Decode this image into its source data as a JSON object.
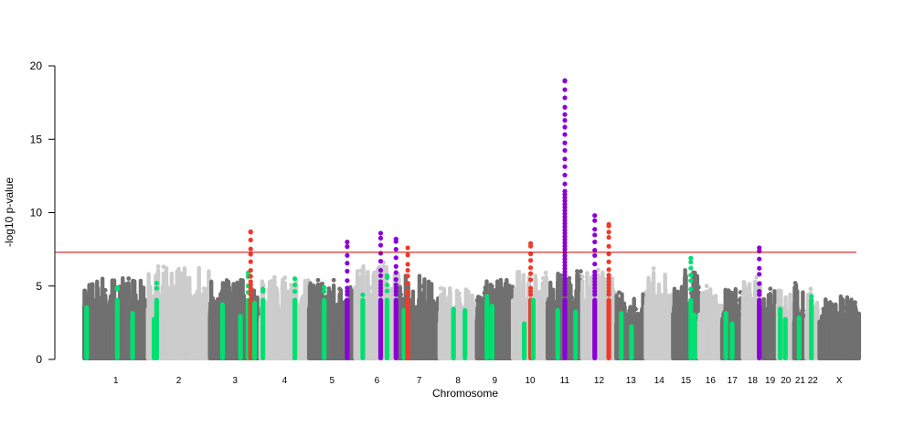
{
  "chart_data": {
    "type": "scatter",
    "subtype": "manhattan",
    "title": "",
    "xlabel": "Chromosome",
    "ylabel": "-log10 p-value",
    "ylim": [
      0,
      20
    ],
    "yticks": [
      0,
      5,
      10,
      15,
      20
    ],
    "threshold": 7.3,
    "colors": {
      "dark": "#707070",
      "light": "#cccccc",
      "green": "#00e070",
      "purple": "#8b00d6",
      "red": "#f03a2a",
      "threshold_line": "#cc0000"
    },
    "chromosomes": [
      {
        "label": "1",
        "start": 0,
        "end": 249,
        "base_max": 5.7
      },
      {
        "label": "2",
        "start": 249,
        "end": 492,
        "base_max": 6.4
      },
      {
        "label": "3",
        "start": 492,
        "end": 690,
        "base_max": 5.6
      },
      {
        "label": "4",
        "start": 690,
        "end": 880,
        "base_max": 5.6
      },
      {
        "label": "5",
        "start": 880,
        "end": 1061,
        "base_max": 5.4
      },
      {
        "label": "6",
        "start": 1061,
        "end": 1232,
        "base_max": 6.6
      },
      {
        "label": "7",
        "start": 1232,
        "end": 1391,
        "base_max": 5.9
      },
      {
        "label": "8",
        "start": 1391,
        "end": 1537,
        "base_max": 5.0
      },
      {
        "label": "9",
        "start": 1537,
        "end": 1678,
        "base_max": 5.7
      },
      {
        "label": "10",
        "start": 1678,
        "end": 1814,
        "base_max": 6.2
      },
      {
        "label": "11",
        "start": 1814,
        "end": 1949,
        "base_max": 6.0
      },
      {
        "label": "12",
        "start": 1949,
        "end": 2083,
        "base_max": 6.1
      },
      {
        "label": "13",
        "start": 2083,
        "end": 2198,
        "base_max": 4.6
      },
      {
        "label": "14",
        "start": 2198,
        "end": 2305,
        "base_max": 6.2
      },
      {
        "label": "15",
        "start": 2305,
        "end": 2407,
        "base_max": 6.6
      },
      {
        "label": "16",
        "start": 2407,
        "end": 2497,
        "base_max": 5.0
      },
      {
        "label": "17",
        "start": 2497,
        "end": 2578,
        "base_max": 5.1
      },
      {
        "label": "18",
        "start": 2578,
        "end": 2656,
        "base_max": 5.6
      },
      {
        "label": "19",
        "start": 2656,
        "end": 2715,
        "base_max": 5.4
      },
      {
        "label": "20",
        "start": 2715,
        "end": 2779,
        "base_max": 4.9
      },
      {
        "label": "21",
        "start": 2779,
        "end": 2827,
        "base_max": 5.2
      },
      {
        "label": "22",
        "start": 2827,
        "end": 2878,
        "base_max": 4.8
      },
      {
        "label": "X",
        "start": 2878,
        "end": 3034,
        "base_max": 4.5
      }
    ],
    "highlight_columns": [
      {
        "chrom": "1",
        "pos": 10,
        "top": 3.7,
        "color": "green"
      },
      {
        "chrom": "1",
        "pos": 130,
        "top": 4.9,
        "color": "green"
      },
      {
        "chrom": "1",
        "pos": 190,
        "top": 3.3,
        "color": "green"
      },
      {
        "chrom": "2",
        "pos": 25,
        "top": 2.9,
        "color": "green"
      },
      {
        "chrom": "2",
        "pos": 35,
        "top": 5.2,
        "color": "green"
      },
      {
        "chrom": "3",
        "pos": 50,
        "top": 3.9,
        "color": "green"
      },
      {
        "chrom": "3",
        "pos": 120,
        "top": 3.1,
        "color": "green"
      },
      {
        "chrom": "3",
        "pos": 150,
        "top": 5.9,
        "color": "green"
      },
      {
        "chrom": "3",
        "pos": 160,
        "top": 8.7,
        "color": "red"
      },
      {
        "chrom": "3",
        "pos": 175,
        "top": 4.0,
        "color": "green"
      },
      {
        "chrom": "4",
        "pos": 10,
        "top": 4.8,
        "color": "green"
      },
      {
        "chrom": "4",
        "pos": 135,
        "top": 5.5,
        "color": "green"
      },
      {
        "chrom": "5",
        "pos": 60,
        "top": 4.9,
        "color": "green"
      },
      {
        "chrom": "5",
        "pos": 150,
        "top": 8.0,
        "color": "purple"
      },
      {
        "chrom": "6",
        "pos": 30,
        "top": 4.4,
        "color": "green"
      },
      {
        "chrom": "6",
        "pos": 100,
        "top": 8.6,
        "color": "purple"
      },
      {
        "chrom": "6",
        "pos": 125,
        "top": 5.7,
        "color": "green"
      },
      {
        "chrom": "6",
        "pos": 160,
        "top": 8.2,
        "color": "purple"
      },
      {
        "chrom": "7",
        "pos": 20,
        "top": 3.5,
        "color": "green"
      },
      {
        "chrom": "7",
        "pos": 35,
        "top": 7.6,
        "color": "red"
      },
      {
        "chrom": "8",
        "pos": 55,
        "top": 3.6,
        "color": "green"
      },
      {
        "chrom": "8",
        "pos": 100,
        "top": 3.5,
        "color": "green"
      },
      {
        "chrom": "9",
        "pos": 40,
        "top": 4.3,
        "color": "green"
      },
      {
        "chrom": "9",
        "pos": 60,
        "top": 3.8,
        "color": "green"
      },
      {
        "chrom": "10",
        "pos": 45,
        "top": 2.6,
        "color": "green"
      },
      {
        "chrom": "10",
        "pos": 70,
        "top": 7.9,
        "color": "red"
      },
      {
        "chrom": "10",
        "pos": 80,
        "top": 4.2,
        "color": "green"
      },
      {
        "chrom": "11",
        "pos": 40,
        "top": 3.5,
        "color": "green"
      },
      {
        "chrom": "11",
        "pos": 68,
        "top": 19.0,
        "color": "purple"
      },
      {
        "chrom": "11",
        "pos": 110,
        "top": 3.4,
        "color": "green"
      },
      {
        "chrom": "12",
        "pos": 50,
        "top": 9.8,
        "color": "purple"
      },
      {
        "chrom": "12",
        "pos": 105,
        "top": 9.2,
        "color": "red"
      },
      {
        "chrom": "13",
        "pos": 20,
        "top": 3.3,
        "color": "green"
      },
      {
        "chrom": "13",
        "pos": 60,
        "top": 2.4,
        "color": "green"
      },
      {
        "chrom": "15",
        "pos": 70,
        "top": 6.9,
        "color": "green"
      },
      {
        "chrom": "15",
        "pos": 85,
        "top": 3.2,
        "color": "green"
      },
      {
        "chrom": "17",
        "pos": 15,
        "top": 3.3,
        "color": "green"
      },
      {
        "chrom": "17",
        "pos": 40,
        "top": 2.6,
        "color": "green"
      },
      {
        "chrom": "18",
        "pos": 65,
        "top": 7.6,
        "color": "purple"
      },
      {
        "chrom": "20",
        "pos": 10,
        "top": 3.6,
        "color": "green"
      },
      {
        "chrom": "20",
        "pos": 30,
        "top": 2.9,
        "color": "green"
      },
      {
        "chrom": "21",
        "pos": 20,
        "top": 3.0,
        "color": "green"
      },
      {
        "chrom": "22",
        "pos": 20,
        "top": 4.3,
        "color": "green"
      }
    ]
  }
}
